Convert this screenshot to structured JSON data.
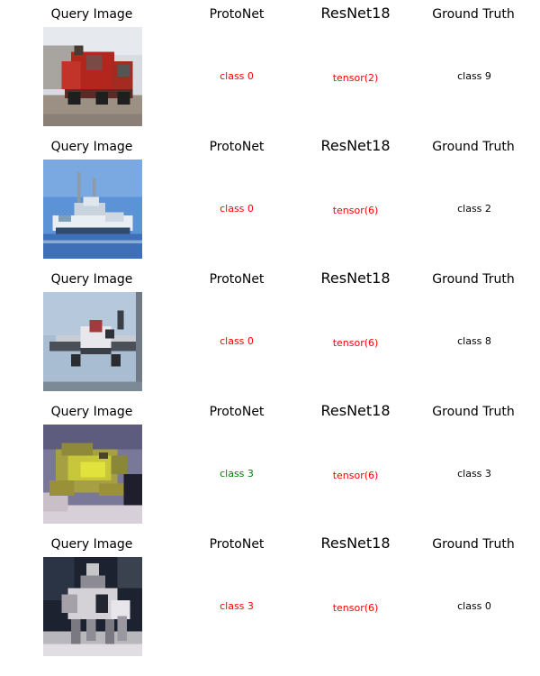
{
  "headers": {
    "query": "Query Image",
    "protonet": "ProtoNet",
    "resnet": "ResNet18",
    "truth": "Ground Truth"
  },
  "colors": {
    "wrong": "#ff0000",
    "correct": "#008000",
    "text": "#000000"
  },
  "rows": [
    {
      "image": "red-truck-image",
      "protonet": "class 0",
      "protonet_correct": false,
      "resnet": "tensor(2)",
      "truth": "class 9"
    },
    {
      "image": "boat-image",
      "protonet": "class 0",
      "protonet_correct": false,
      "resnet": "tensor(6)",
      "truth": "class 2"
    },
    {
      "image": "airplane-image",
      "protonet": "class 0",
      "protonet_correct": false,
      "resnet": "tensor(6)",
      "truth": "class 8"
    },
    {
      "image": "frog-image",
      "protonet": "class 3",
      "protonet_correct": true,
      "resnet": "tensor(6)",
      "truth": "class 3"
    },
    {
      "image": "horse-rider-image",
      "protonet": "class 3",
      "protonet_correct": false,
      "resnet": "tensor(6)",
      "truth": "class 0"
    }
  ]
}
